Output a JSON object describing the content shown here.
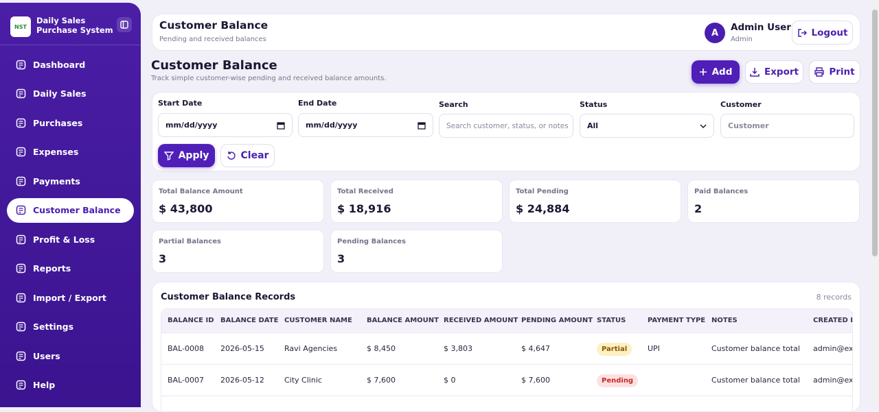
{
  "sidebar": {
    "logo": "NST",
    "brand_line1": "Daily Sales",
    "brand_line2": "Purchase System",
    "nav": [
      "Dashboard",
      "Daily Sales",
      "Purchases",
      "Expenses",
      "Payments",
      "Customer Balance",
      "Profit & Loss",
      "Reports",
      "Import / Export",
      "Settings",
      "Users",
      "Help"
    ],
    "active": 5
  },
  "header": {
    "title": "Customer Balance",
    "subtitle": "Pending and received balances",
    "avatar": "A",
    "user_name": "Admin User",
    "user_role": "Admin",
    "logout": "Logout"
  },
  "page": {
    "title": "Customer Balance",
    "subtitle": "Track simple customer-wise pending and received balance amounts.",
    "actions": [
      "Add",
      "Export",
      "Print"
    ]
  },
  "filters": {
    "start_label": "Start Date",
    "start_placeholder": "mm/dd/yyyy",
    "end_label": "End Date",
    "end_placeholder": "mm/dd/yyyy",
    "search_label": "Search",
    "search_placeholder": "Search customer, status, or notes",
    "status_label": "Status",
    "status_value": "All",
    "customer_label": "Customer",
    "customer_placeholder": "Customer",
    "apply": "Apply",
    "clear": "Clear"
  },
  "stats": [
    {
      "label": "Total Balance Amount",
      "value": "$ 43,800"
    },
    {
      "label": "Total Received",
      "value": "$ 18,916"
    },
    {
      "label": "Total Pending",
      "value": "$ 24,884"
    },
    {
      "label": "Paid Balances",
      "value": "2"
    },
    {
      "label": "Partial Balances",
      "value": "3"
    },
    {
      "label": "Pending Balances",
      "value": "3"
    }
  ],
  "table": {
    "title": "Customer Balance Records",
    "count": "8 records",
    "columns": [
      "BALANCE ID",
      "BALANCE DATE",
      "CUSTOMER NAME",
      "BALANCE AMOUNT",
      "RECEIVED AMOUNT",
      "PENDING AMOUNT",
      "STATUS",
      "PAYMENT TYPE",
      "NOTES",
      "CREATED BY"
    ],
    "rows": [
      [
        "BAL-0008",
        "2026-05-15",
        "Ravi Agencies",
        "$ 8,450",
        "$ 3,803",
        "$ 4,647",
        "Partial",
        "UPI",
        "Customer balance total",
        "admin@ex"
      ],
      [
        "BAL-0007",
        "2026-05-12",
        "City Clinic",
        "$ 7,600",
        "$ 0",
        "$ 7,600",
        "Pending",
        null,
        "Customer balance total",
        "admin@ex"
      ]
    ],
    "status_badges": [
      {
        "bg": "#fdf0c2",
        "fg": "#8a5800"
      },
      {
        "bg": "#fde1e1",
        "fg": "#c62828"
      }
    ]
  }
}
